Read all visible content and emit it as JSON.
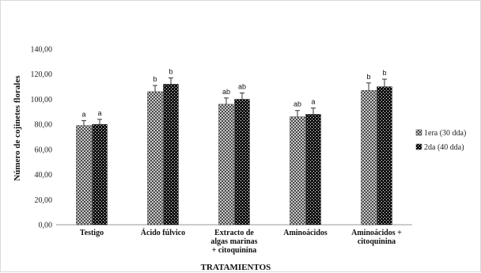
{
  "chart_data": {
    "type": "bar",
    "title": "",
    "xlabel": "TRATAMIENTOS",
    "ylabel": "Número de cojinetes florales",
    "ylim": [
      0,
      140
    ],
    "yticks": [
      "0,00",
      "20,00",
      "40,00",
      "60,00",
      "80,00",
      "100,00",
      "120,00",
      "140,00"
    ],
    "categories": [
      [
        "Testigo"
      ],
      [
        "Ácido fúlvico"
      ],
      [
        "Extracto de",
        "algas marinas",
        "+ citoquinina"
      ],
      [
        "Aminoácidos"
      ],
      [
        "Aminoácidos +",
        "citoquinina"
      ]
    ],
    "series": [
      {
        "name": "1era (30 dda)",
        "values": [
          79,
          106,
          96,
          86,
          107
        ],
        "errors": [
          4,
          5,
          5,
          5,
          6
        ],
        "letters": [
          "a",
          "b",
          "ab",
          "ab",
          "b"
        ],
        "pattern": "light"
      },
      {
        "name": "2da (40 dda)",
        "values": [
          80,
          112,
          100,
          88,
          110
        ],
        "errors": [
          4,
          5,
          5,
          5,
          6
        ],
        "letters": [
          "a",
          "b",
          "ab",
          "a",
          "b"
        ],
        "pattern": "dark"
      }
    ],
    "legend_position": "right",
    "grid": false
  }
}
